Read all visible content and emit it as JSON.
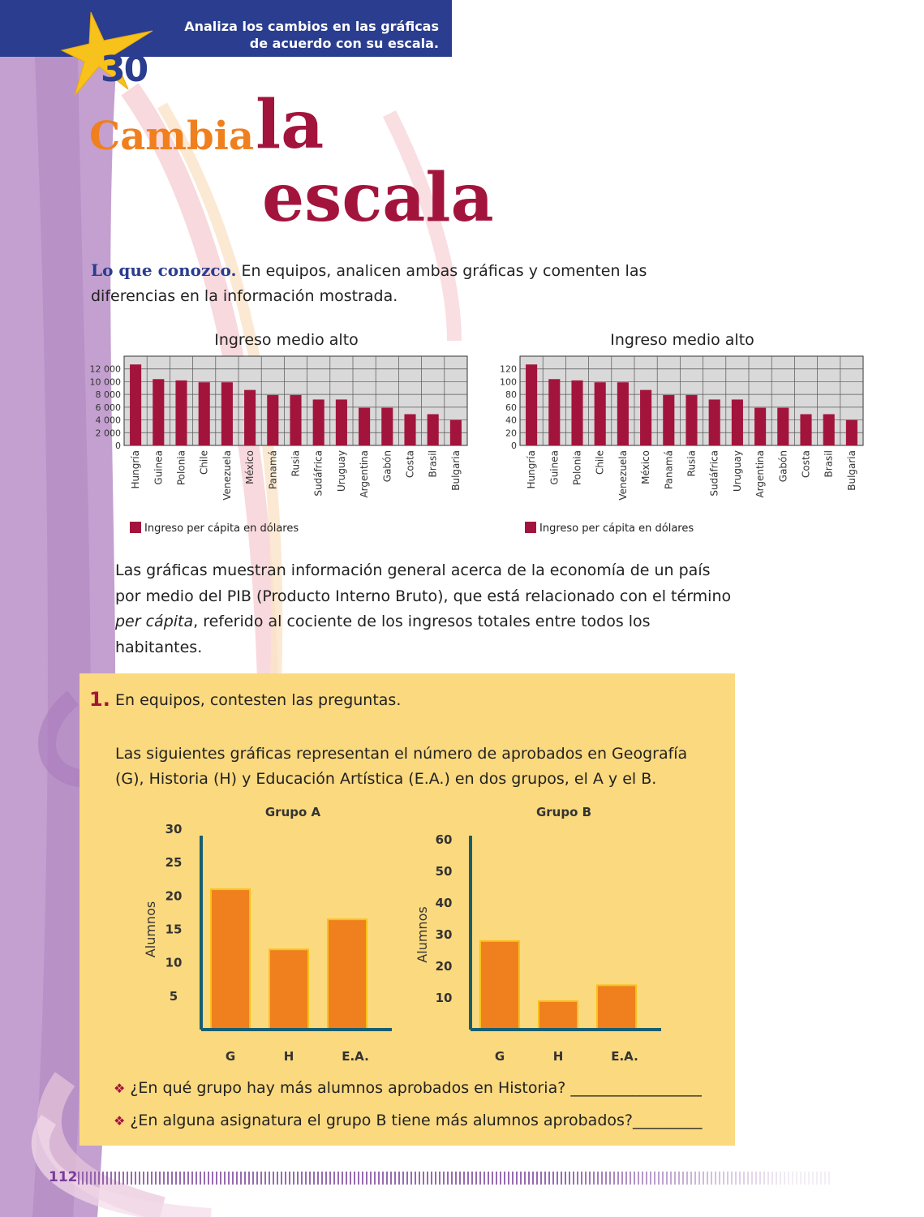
{
  "header": {
    "line1": "Analiza los cambios en las gráficas",
    "line2": "de acuerdo con su escala."
  },
  "lesson_number": "30",
  "title": {
    "word1": "Cambia",
    "word2": "la",
    "word3": "escala"
  },
  "intro": {
    "lead": "Lo que conozco.",
    "text": " En equipos, analicen ambas gráficas y comenten las diferencias en la información mostrada."
  },
  "paragraph": {
    "before": "Las gráficas muestran información general acerca de la economía de un país por medio del PIB (Producto Interno Bruto), que está relacionado con el término ",
    "italic": "per cápita",
    "after": ", referido al cociente de los ingresos totales entre todos los habitantes."
  },
  "question": {
    "number": "1.",
    "text": "En equipos, contesten las preguntas.",
    "description": "Las siguientes gráficas representan el número de aprobados en Geografía (G), Historia (H) y Educación Artística (E.A.) en dos grupos, el A y el B.",
    "bullets": [
      "¿En qué grupo hay más alumnos aprobados en Historia? _________________",
      "¿En alguna asignatura el grupo B tiene más alumnos aprobados?_________"
    ]
  },
  "page_number": "112",
  "colors": {
    "bar_red": "#a3143c",
    "bar_orange": "#f07f1e",
    "axis_teal": "#1a5e6e",
    "header_blue": "#2a3d8f"
  },
  "chart_data": [
    {
      "type": "bar",
      "title": "Ingreso medio alto",
      "legend": "Ingreso per cápita en dólares",
      "categories": [
        "Hungría",
        "Guinea",
        "Polonia",
        "Chile",
        "Venezuela",
        "México",
        "Panamá",
        "Rusia",
        "Sudáfrica",
        "Uruguay",
        "Argentina",
        "Gabón",
        "Costa",
        "Brasil",
        "Bulgaria"
      ],
      "values": [
        12700,
        10400,
        10200,
        9900,
        9900,
        8700,
        7900,
        7900,
        7200,
        7200,
        5900,
        5900,
        4900,
        4900,
        4000
      ],
      "yticks": [
        "0",
        "2 000",
        "4 000",
        "6 000",
        "8 000",
        "10 000",
        "12 000"
      ],
      "ylim": [
        0,
        14000
      ],
      "grid": true
    },
    {
      "type": "bar",
      "title": "Ingreso medio alto",
      "legend": "Ingreso per cápita en dólares",
      "categories": [
        "Hungría",
        "Guinea",
        "Polonia",
        "Chile",
        "Venezuela",
        "México",
        "Panamá",
        "Rusia",
        "Sudáfrica",
        "Uruguay",
        "Argentina",
        "Gabón",
        "Costa",
        "Brasil",
        "Bulgaria"
      ],
      "values": [
        127,
        104,
        102,
        99,
        99,
        87,
        79,
        79,
        72,
        72,
        59,
        59,
        49,
        49,
        40
      ],
      "yticks": [
        "0",
        "20",
        "40",
        "60",
        "80",
        "100",
        "120"
      ],
      "ylim": [
        0,
        140
      ],
      "grid": true
    },
    {
      "type": "bar",
      "title": "Grupo A",
      "ylabel": "Alumnos",
      "categories": [
        "G",
        "H",
        "E.A."
      ],
      "values": [
        21,
        12,
        16.5
      ],
      "yticks": [
        "5",
        "10",
        "15",
        "20",
        "25",
        "30"
      ],
      "ylim": [
        0,
        30
      ],
      "grid": false
    },
    {
      "type": "bar",
      "title": "Grupo B",
      "ylabel": "Alumnos",
      "categories": [
        "G",
        "H",
        "E.A."
      ],
      "values": [
        28,
        9,
        14
      ],
      "yticks": [
        "10",
        "20",
        "30",
        "40",
        "50",
        "60"
      ],
      "ylim": [
        0,
        60
      ],
      "grid": false
    }
  ]
}
